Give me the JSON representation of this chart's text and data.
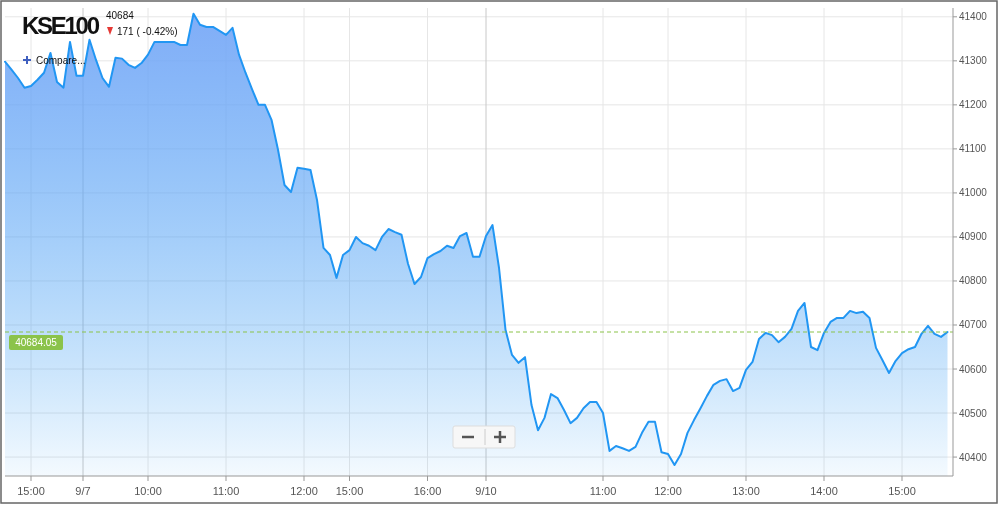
{
  "chart_data": {
    "type": "area",
    "title": "KSE100",
    "subtitle": "40684",
    "annotations": [
      "171 ( -0.42%)",
      "Compare..."
    ],
    "categories": [
      null,
      null,
      null,
      null,
      "15:00",
      null,
      null,
      null,
      null,
      null,
      null,
      null,
      "9/7",
      null,
      null,
      null,
      null,
      null,
      null,
      null,
      null,
      null,
      "10:00",
      null,
      null,
      null,
      null,
      null,
      null,
      null,
      null,
      null,
      null,
      null,
      "11:00",
      null,
      null,
      null,
      null,
      null,
      null,
      null,
      null,
      null,
      null,
      null,
      "12:00",
      null,
      null,
      null,
      null,
      null,
      null,
      "15:00",
      null,
      null,
      null,
      null,
      null,
      null,
      null,
      null,
      null,
      null,
      null,
      "16:00",
      null,
      null,
      null,
      null,
      null,
      null,
      null,
      null,
      "9/10",
      null,
      null,
      null,
      null,
      null,
      null,
      null,
      null,
      null,
      null,
      null,
      null,
      null,
      null,
      null,
      null,
      null,
      "11:00",
      null,
      null,
      null,
      null,
      null,
      null,
      null,
      null,
      null,
      "12:00",
      null,
      null,
      null,
      null,
      null,
      null,
      null,
      null,
      null,
      null,
      null,
      "13:00",
      null,
      null,
      null,
      null,
      null,
      null,
      null,
      null,
      null,
      null,
      null,
      "14:00",
      null,
      null,
      null,
      null,
      null,
      null,
      null,
      null,
      null,
      null,
      null,
      "15:00",
      null,
      null,
      null,
      null,
      null,
      null,
      null
    ],
    "series": [
      {
        "color": "#2196f3",
        "values": [
          41298,
          41280,
          41261,
          41239,
          41243,
          41257,
          41273,
          41318,
          41252,
          41239,
          41343,
          41266,
          41266,
          41348,
          41302,
          41261,
          41241,
          41307,
          41305,
          41291,
          41284,
          41295,
          41314,
          41343,
          41343,
          41343,
          41343,
          41336,
          41336,
          41407,
          41382,
          41377,
          41377,
          41368,
          41359,
          41375,
          41314,
          41273,
          41236,
          41200,
          41200,
          41166,
          41098,
          41018,
          41002,
          41057,
          41055,
          41052,
          40984,
          40875,
          40859,
          40807,
          40859,
          40870,
          40900,
          40886,
          40880,
          40870,
          40900,
          40918,
          40911,
          40905,
          40839,
          40793,
          40809,
          40852,
          40861,
          40868,
          40880,
          40875,
          40902,
          40909,
          40855,
          40855,
          40902,
          40927,
          40830,
          40689,
          40632,
          40614,
          40627,
          40518,
          40461,
          40489,
          40543,
          40534,
          40507,
          40477,
          40489,
          40511,
          40525,
          40525,
          40500,
          40414,
          40425,
          40420,
          40414,
          40423,
          40455,
          40480,
          40480,
          40411,
          40407,
          40382,
          40407,
          40455,
          40484,
          40511,
          40539,
          40564,
          40573,
          40577,
          40550,
          40557,
          40598,
          40616,
          40668,
          40682,
          40677,
          40661,
          40673,
          40691,
          40732,
          40750,
          40650,
          40643,
          40682,
          40707,
          40716,
          40716,
          40732,
          40727,
          40730,
          40716,
          40648,
          40620,
          40591,
          40618,
          40636,
          40645,
          40650,
          40680,
          40698,
          40680,
          40673,
          40684
        ]
      }
    ],
    "ylim": [
      40357,
      41420
    ],
    "yticks": [
      40400,
      40500,
      40600,
      40700,
      40800,
      40900,
      41000,
      41100,
      41200,
      41300,
      41400
    ],
    "grid": true,
    "ref_lines": [
      {
        "axis": "y",
        "value": 40684.05,
        "label": "40684.05",
        "color": "#8bc34a",
        "line_style": "dashed"
      }
    ]
  }
}
